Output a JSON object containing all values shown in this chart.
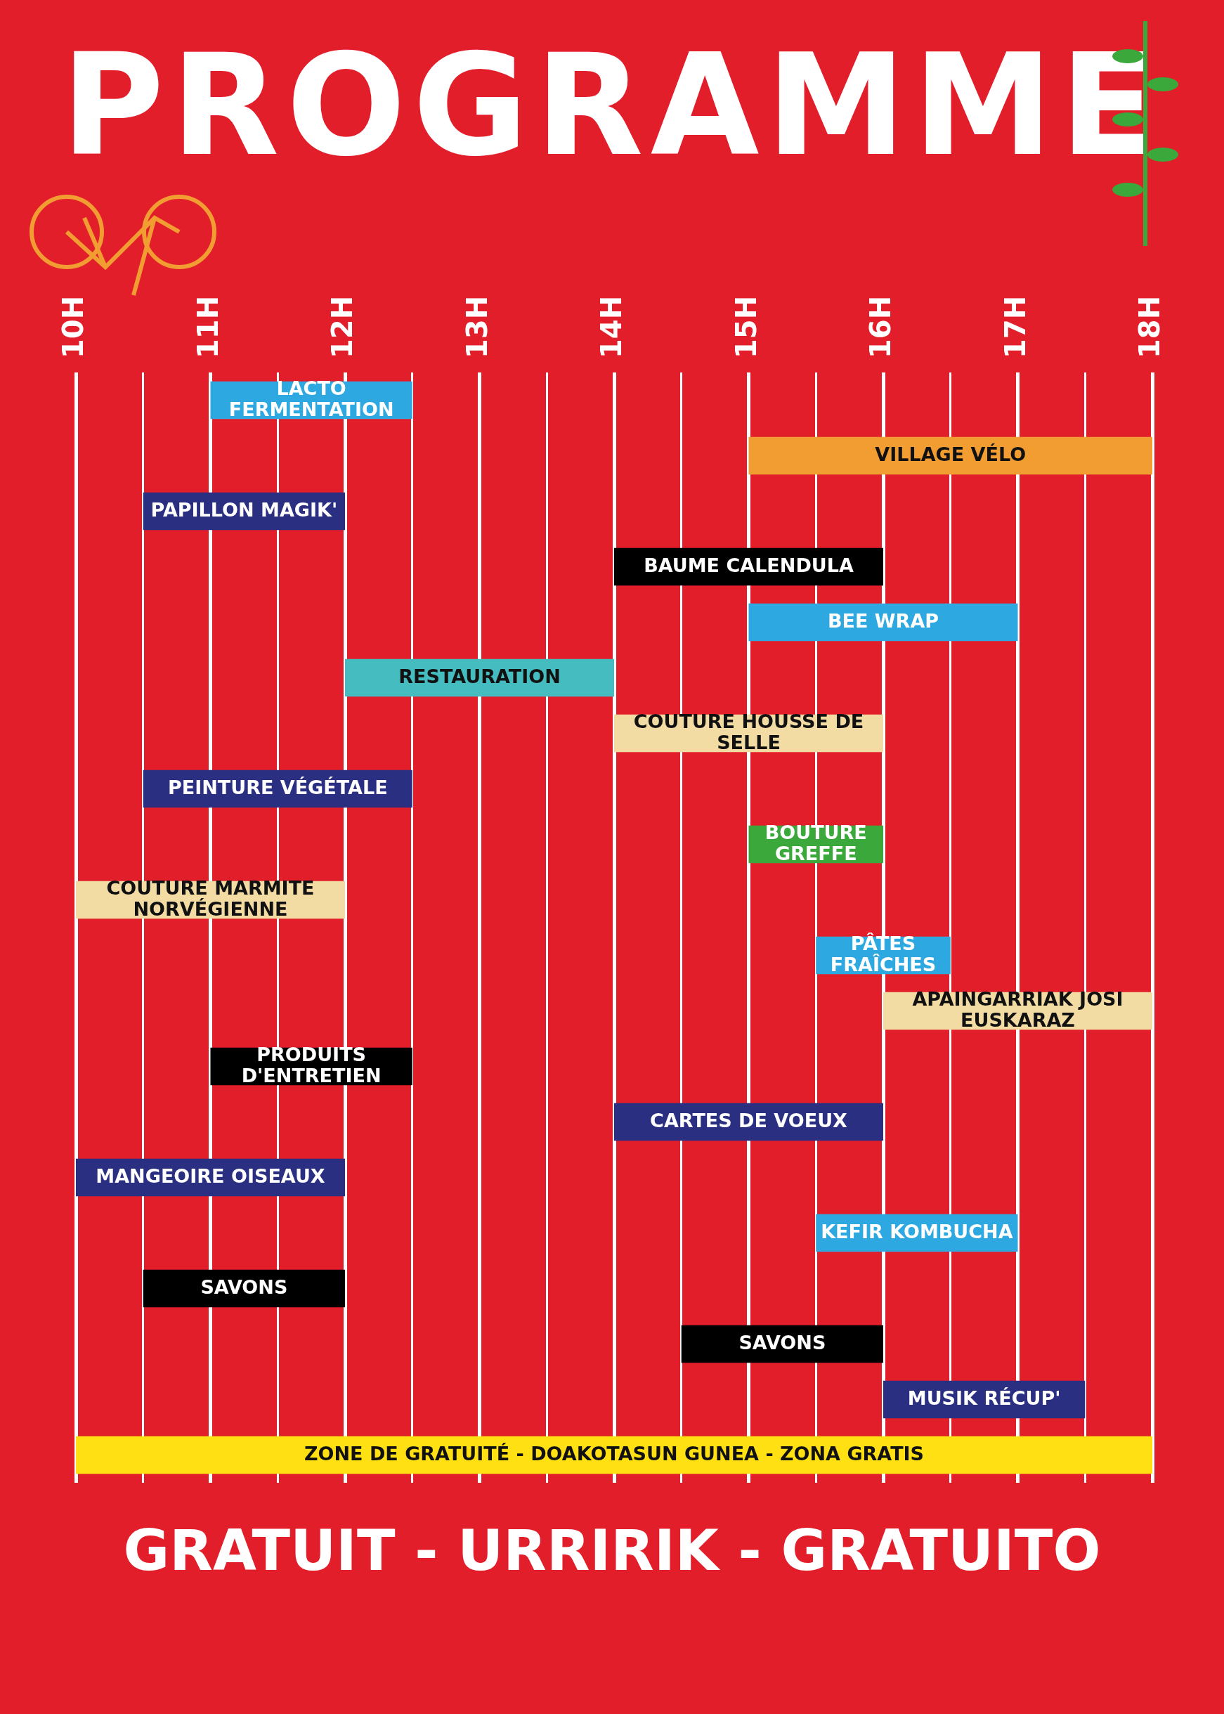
{
  "chart_data": {
    "type": "bar",
    "orientation": "horizontal",
    "title": "PROGRAMME",
    "categories": [
      "LACTO FERMENTATION",
      "VILLAGE VÉLO",
      "PAPILLON MAGIK'",
      "BAUME CALENDULA",
      "BEE WRAP",
      "RESTAURATION",
      "COUTURE HOUSSE DE SELLE",
      "PEINTURE VÉGÉTALE",
      "BOUTURE GREFFE",
      "COUTURE MARMITE NORVÉGIENNE",
      "PÂTES FRAÎCHES",
      "APAINGARRIAK JOSI EUSKARAZ",
      "PRODUITS D'ENTRETIEN",
      "CARTES DE VOEUX",
      "MANGEOIRE OISEAUX",
      "KEFIR KOMBUCHA",
      "SAVONS",
      "SAVONS",
      "MUSIK RÉCUP'",
      "ZONE DE GRATUITÉ - DOAKOTASUN GUNEA - ZONA GRATIS"
    ],
    "base": [
      11,
      15,
      10.5,
      14,
      15,
      12,
      14,
      10.5,
      15,
      10,
      15.5,
      16,
      11,
      14,
      10,
      15.5,
      10.5,
      14.5,
      16,
      10
    ],
    "values": [
      1.5,
      3,
      1.5,
      2,
      2,
      2,
      2,
      2,
      1,
      2,
      1,
      2,
      1.5,
      2,
      2,
      1.5,
      1.5,
      1.5,
      1.5,
      8
    ],
    "colors": [
      "#2ea8e0",
      "#f29d32",
      "#2b2f82",
      "#000000",
      "#2ea8e0",
      "#45bdc0",
      "#f3dca4",
      "#2b2f82",
      "#3aa83a",
      "#f3dca4",
      "#2ea8e0",
      "#f3dca4",
      "#000000",
      "#2b2f82",
      "#2b2f82",
      "#2ea8e0",
      "#000000",
      "#000000",
      "#2b2f82",
      "#ffe012"
    ],
    "xlim": [
      10,
      18
    ],
    "xticks": [
      {
        "value": 10,
        "label": "10H"
      },
      {
        "value": 10.5,
        "label": null
      },
      {
        "value": 11,
        "label": "11H"
      },
      {
        "value": 11.5,
        "label": null
      },
      {
        "value": 12,
        "label": "12H"
      },
      {
        "value": 12.5,
        "label": null
      },
      {
        "value": 13,
        "label": "13H"
      },
      {
        "value": 13.5,
        "label": null
      },
      {
        "value": 14,
        "label": "14H"
      },
      {
        "value": 14.5,
        "label": null
      },
      {
        "value": 15,
        "label": "15H"
      },
      {
        "value": 15.5,
        "label": null
      },
      {
        "value": 16,
        "label": "16H"
      },
      {
        "value": 16.5,
        "label": null
      },
      {
        "value": 17,
        "label": "17H"
      },
      {
        "value": 17.5,
        "label": null
      },
      {
        "value": 18,
        "label": "18H"
      }
    ],
    "grid": "x",
    "tick_labels": "x",
    "annotations": [
      "GRATUIT - URRIRIK - GRATUITO"
    ]
  }
}
